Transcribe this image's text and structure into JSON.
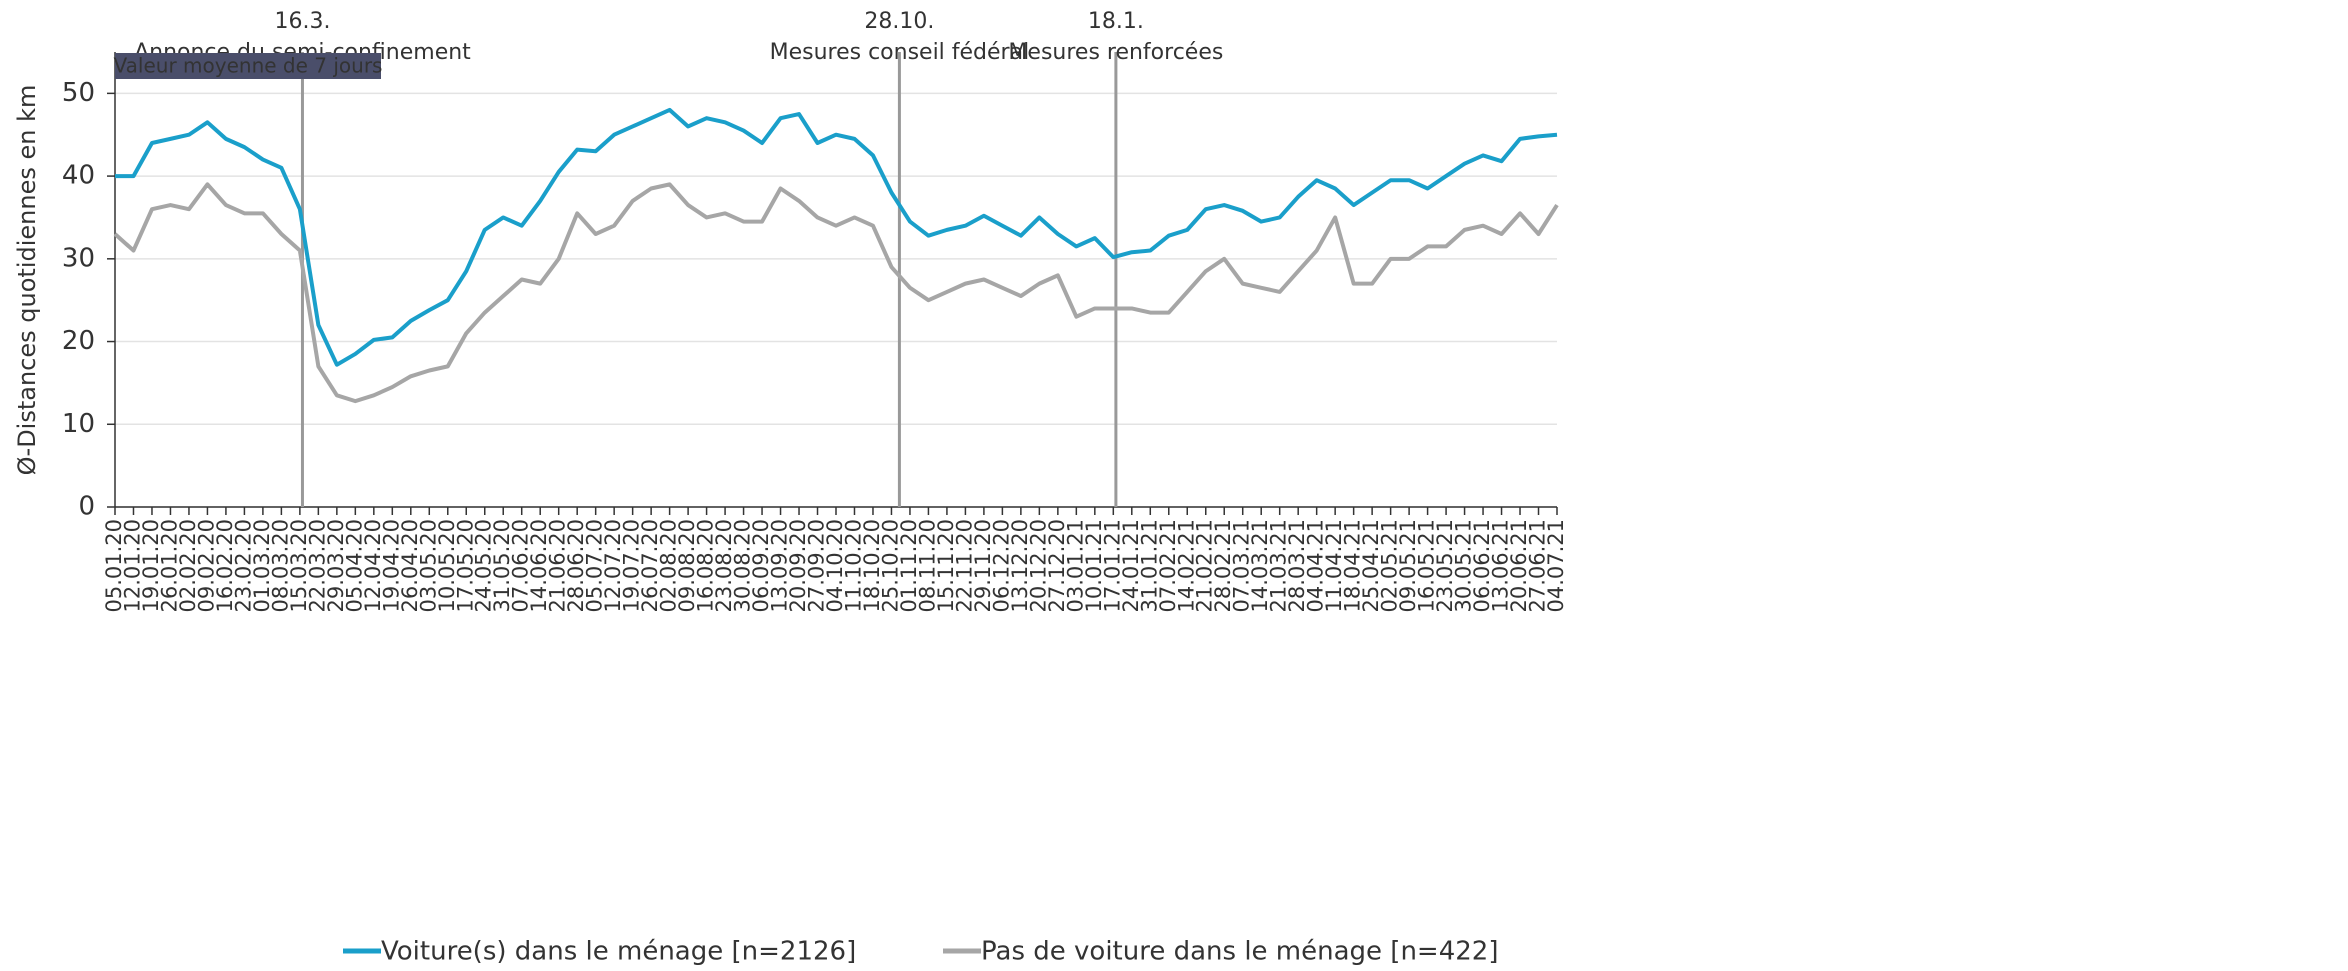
{
  "chart_data": {
    "type": "line",
    "subtitle": "Valeur moyenne de 7 jours",
    "y_label": "Ø-Distances quotidiennes en km",
    "categories": [
      "05.01.20",
      "12.01.20",
      "19.01.20",
      "26.01.20",
      "02.02.20",
      "09.02.20",
      "16.02.20",
      "23.02.20",
      "01.03.20",
      "08.03.20",
      "15.03.20",
      "22.03.20",
      "29.03.20",
      "05.04.20",
      "12.04.20",
      "19.04.20",
      "26.04.20",
      "03.05.20",
      "10.05.20",
      "17.05.20",
      "24.05.20",
      "31.05.20",
      "07.06.20",
      "14.06.20",
      "21.06.20",
      "28.06.20",
      "05.07.20",
      "12.07.20",
      "19.07.20",
      "26.07.20",
      "02.08.20",
      "09.08.20",
      "16.08.20",
      "23.08.20",
      "30.08.20",
      "06.09.20",
      "13.09.20",
      "20.09.20",
      "27.09.20",
      "04.10.20",
      "11.10.20",
      "18.10.20",
      "25.10.20",
      "01.11.20",
      "08.11.20",
      "15.11.20",
      "22.11.20",
      "29.11.20",
      "06.12.20",
      "13.12.20",
      "20.12.20",
      "27.12.20",
      "03.01.21",
      "10.01.21",
      "17.01.21",
      "24.01.21",
      "31.01.21",
      "07.02.21",
      "14.02.21",
      "21.02.21",
      "28.02.21",
      "07.03.21",
      "14.03.21",
      "21.03.21",
      "28.03.21",
      "04.04.21",
      "11.04.21",
      "18.04.21",
      "25.04.21",
      "02.05.21",
      "09.05.21",
      "16.05.21",
      "23.05.21",
      "30.05.21",
      "06.06.21",
      "13.06.21",
      "20.06.21",
      "27.06.21",
      "04.07.21"
    ],
    "series": [
      {
        "name": "Voiture(s) dans le ménage [n=2126]",
        "color": "#1a9fca",
        "values": [
          40,
          40,
          44,
          44.5,
          45,
          46.5,
          44.5,
          43.5,
          42,
          41,
          36,
          22,
          17.2,
          18.5,
          20.2,
          20.5,
          22.5,
          23.8,
          25,
          28.5,
          33.5,
          35,
          34,
          37,
          40.5,
          43.2,
          43,
          45,
          46,
          47,
          48,
          46,
          47,
          46.5,
          45.5,
          44,
          47,
          47.5,
          44,
          45,
          44.5,
          42.5,
          38,
          34.5,
          32.8,
          33.5,
          34,
          35.2,
          34,
          32.8,
          35,
          33,
          31.5,
          32.5,
          30.2,
          30.8,
          31,
          32.8,
          33.5,
          36,
          36.5,
          35.8,
          34.5,
          35,
          37.5,
          39.5,
          38.5,
          36.5,
          38,
          39.5,
          39.5,
          38.5,
          40,
          41.5,
          42.5,
          41.8,
          44.5,
          44.8,
          45
        ]
      },
      {
        "name": "Pas de voiture dans le ménage [n=422]",
        "color": "#a6a6a6",
        "values": [
          33,
          31,
          36,
          36.5,
          36,
          39,
          36.5,
          35.5,
          35.5,
          33,
          31,
          17,
          13.5,
          12.8,
          13.5,
          14.5,
          15.8,
          16.5,
          17,
          21,
          23.5,
          25.5,
          27.5,
          27,
          30,
          35.5,
          33,
          34,
          37,
          38.5,
          39,
          36.5,
          35,
          35.5,
          34.5,
          34.5,
          38.5,
          37,
          35,
          34,
          35,
          34,
          29,
          26.5,
          25,
          26,
          27,
          27.5,
          26.5,
          25.5,
          27,
          28,
          23,
          24,
          24,
          24,
          23.5,
          23.5,
          26,
          28.5,
          30,
          27,
          26.5,
          26,
          28.5,
          31,
          35,
          27,
          27,
          30,
          30,
          31.5,
          31.5,
          33.5,
          34,
          33,
          35.5,
          33,
          36.5
        ]
      }
    ],
    "annotations": [
      {
        "x": 10.14,
        "date": "16.3.",
        "text": "Annonce du semi-confinement"
      },
      {
        "x": 42.43,
        "date": "28.10.",
        "text": "Mesures conseil fédéral"
      },
      {
        "x": 54.14,
        "date": "18.1.",
        "text": "Mesures renforcées"
      }
    ],
    "ylim": [
      0,
      55
    ],
    "yticks": [
      0,
      10,
      20,
      30,
      40,
      50
    ],
    "grid": true,
    "legend": "bottom"
  }
}
